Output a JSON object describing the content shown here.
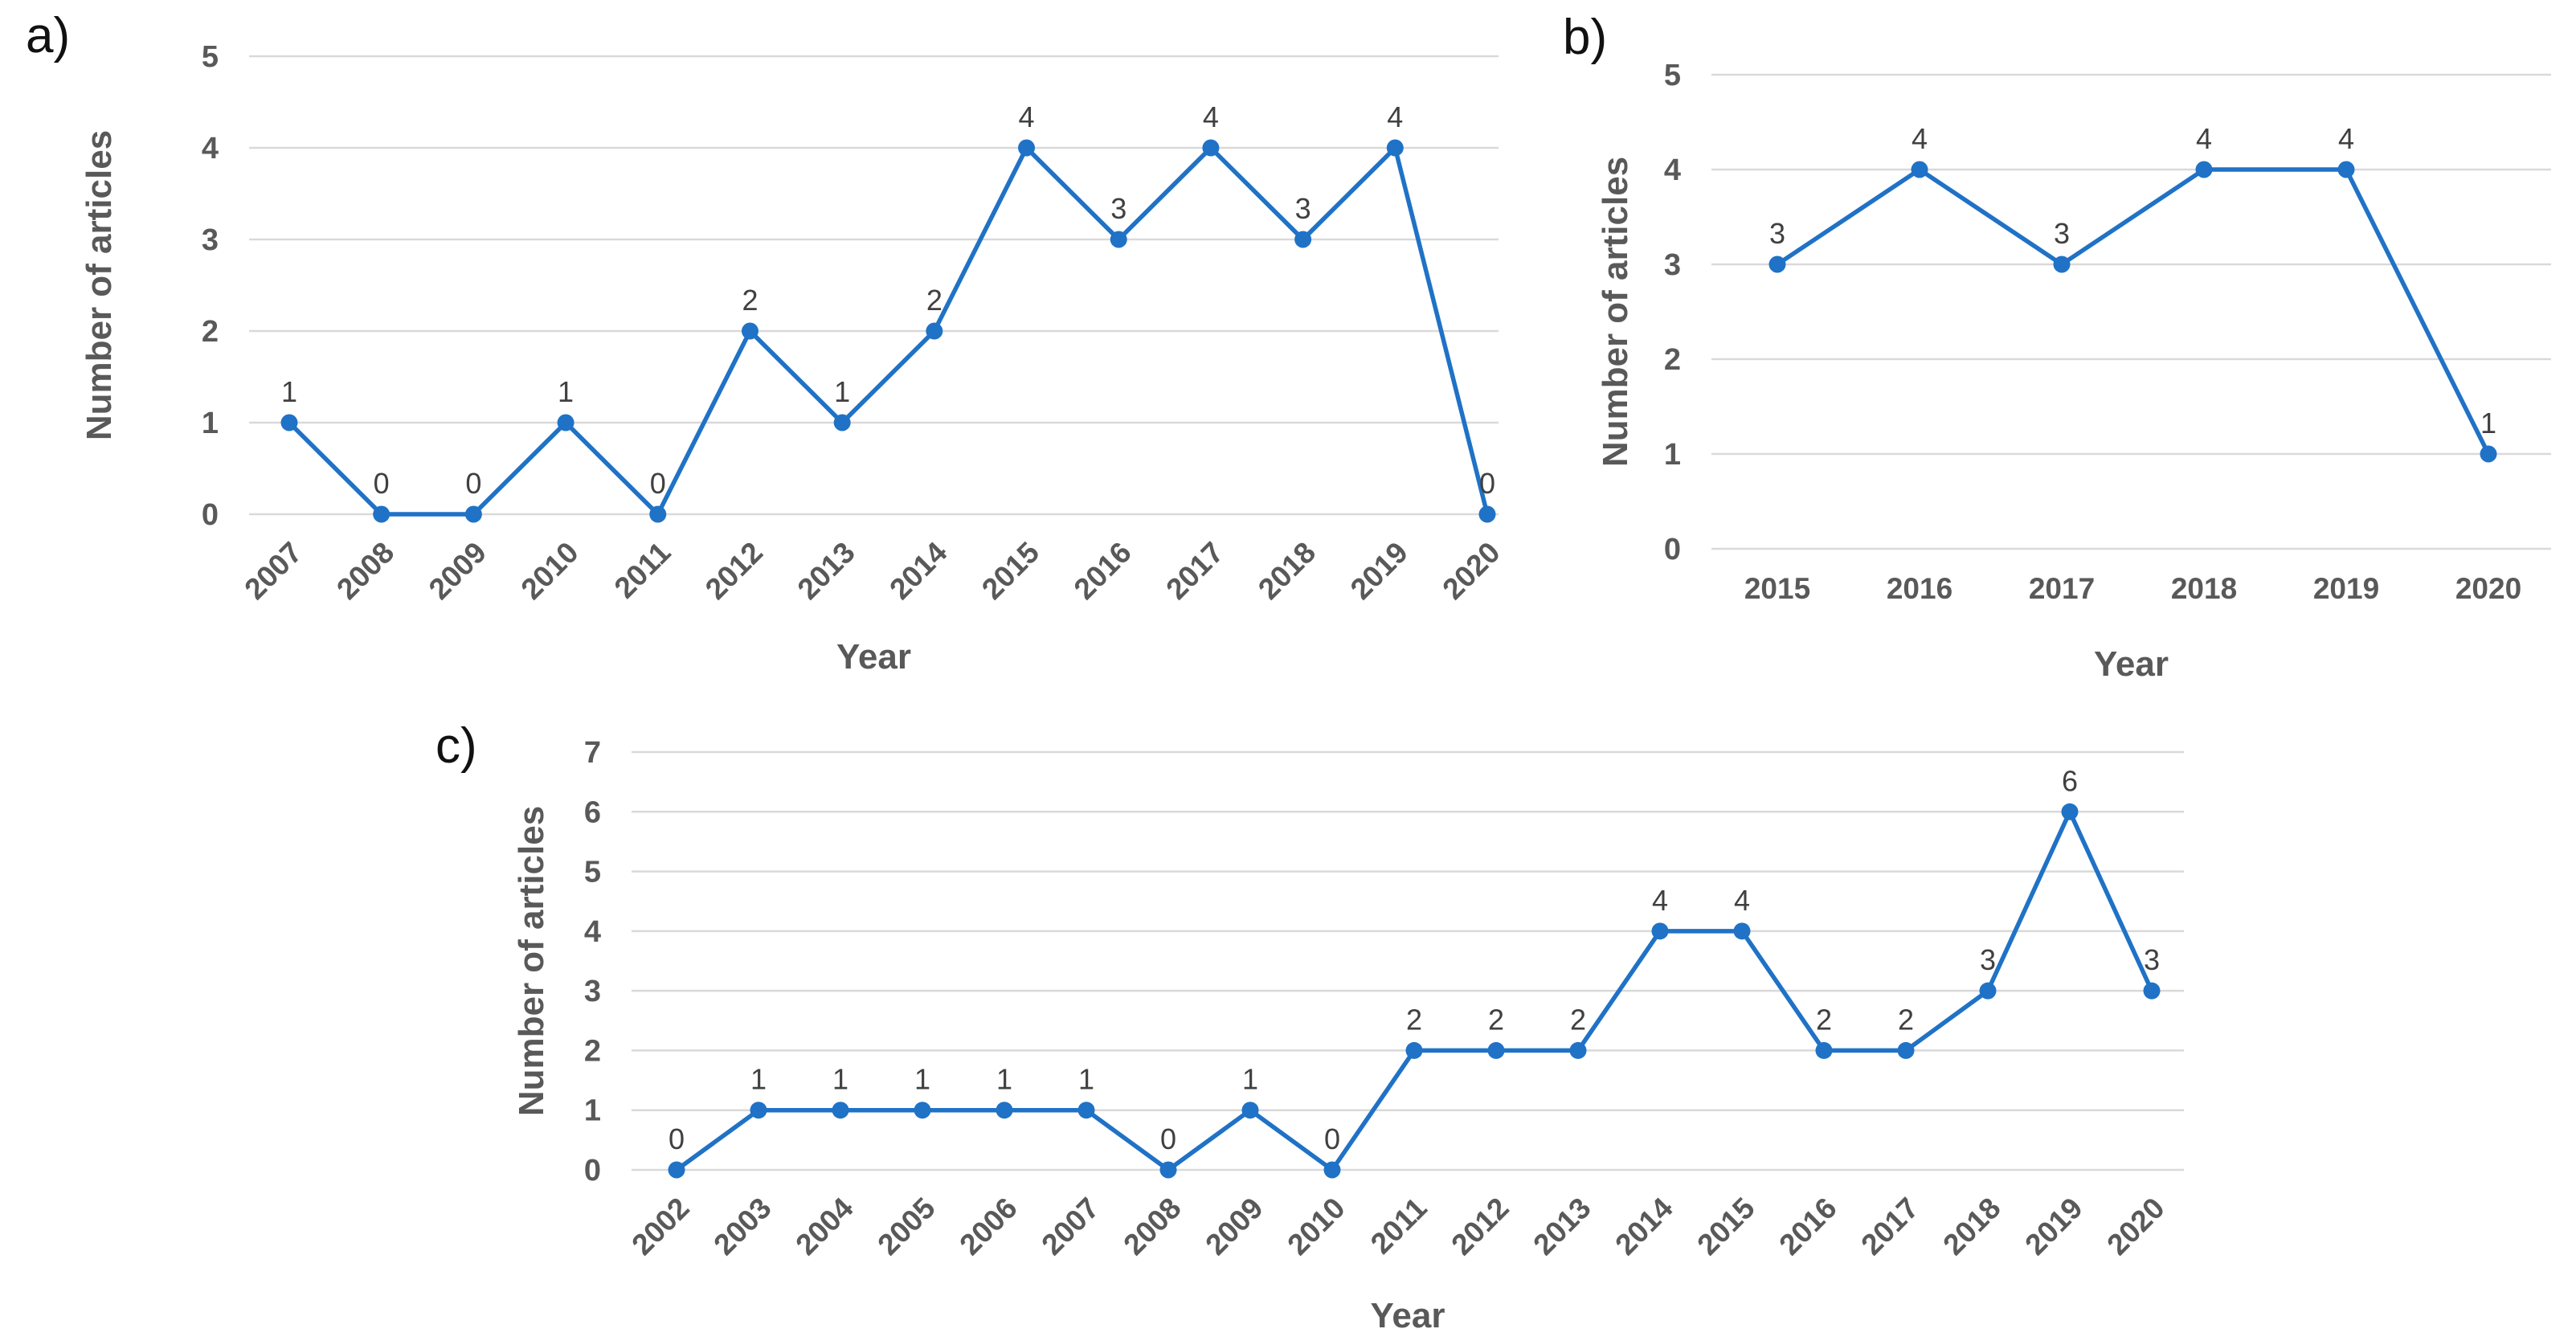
{
  "figure": {
    "background_color": "#ffffff",
    "line_color": "#1F72C6",
    "marker_color": "#1F72C6",
    "gridline_color": "#D9D9D9",
    "axis_text_color": "#595959",
    "data_label_color": "#404040",
    "panel_label_color": "#111111"
  },
  "chart_data": [
    {
      "type": "line",
      "panel_label": "a)",
      "categories": [
        "2007",
        "2008",
        "2009",
        "2010",
        "2011",
        "2012",
        "2013",
        "2014",
        "2015",
        "2016",
        "2017",
        "2018",
        "2019",
        "2020"
      ],
      "values": [
        1,
        0,
        0,
        1,
        0,
        2,
        1,
        2,
        4,
        3,
        4,
        3,
        4,
        0
      ],
      "xlabel": "Year",
      "ylabel": "Number of articles",
      "ylim": [
        0,
        5
      ],
      "ytick_step": 1,
      "grid": true,
      "legend": "none",
      "x_label_rotation": -45,
      "data_labels": true
    },
    {
      "type": "line",
      "panel_label": "b)",
      "categories": [
        "2015",
        "2016",
        "2017",
        "2018",
        "2019",
        "2020"
      ],
      "values": [
        3,
        4,
        3,
        4,
        4,
        1
      ],
      "xlabel": "Year",
      "ylabel": "Number of articles",
      "ylim": [
        0,
        5
      ],
      "ytick_step": 1,
      "grid": true,
      "legend": "none",
      "x_label_rotation": 0,
      "data_labels": true
    },
    {
      "type": "line",
      "panel_label": "c)",
      "categories": [
        "2002",
        "2003",
        "2004",
        "2005",
        "2006",
        "2007",
        "2008",
        "2009",
        "2010",
        "2011",
        "2012",
        "2013",
        "2014",
        "2015",
        "2016",
        "2017",
        "2018",
        "2019",
        "2020"
      ],
      "values": [
        0,
        1,
        1,
        1,
        1,
        1,
        0,
        1,
        0,
        2,
        2,
        2,
        4,
        4,
        2,
        2,
        3,
        6,
        3
      ],
      "xlabel": "Year",
      "ylabel": "Number of articles",
      "ylim": [
        0,
        7
      ],
      "ytick_step": 1,
      "grid": true,
      "legend": "none",
      "x_label_rotation": -45,
      "data_labels": true
    }
  ]
}
